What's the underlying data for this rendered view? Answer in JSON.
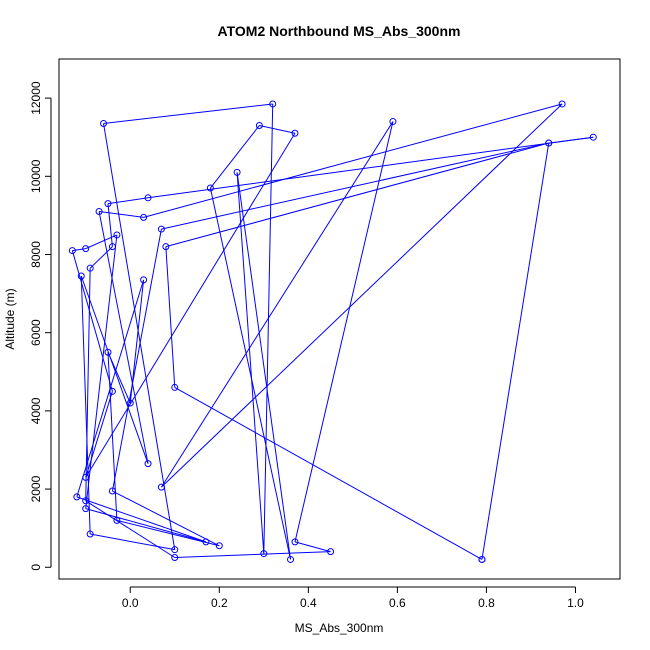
{
  "chart_data": {
    "type": "line",
    "title": "ATOM2 Northbound MS_Abs_300nm",
    "xlabel": "MS_Abs_300nm",
    "ylabel": "Altitude (m)",
    "xlim": [
      -0.16,
      1.1
    ],
    "ylim": [
      -300,
      13000
    ],
    "xticks": [
      0.0,
      0.2,
      0.4,
      0.6,
      0.8,
      1.0
    ],
    "xtick_labels": [
      "0.0",
      "0.2",
      "0.4",
      "0.6",
      "0.8",
      "1.0"
    ],
    "yticks": [
      0,
      2000,
      4000,
      6000,
      8000,
      10000,
      12000
    ],
    "ytick_labels": [
      "0",
      "2000",
      "4000",
      "6000",
      "8000",
      "10000",
      "12000"
    ],
    "grid": false,
    "legend": "none",
    "markers": "open-circle",
    "series": [
      {
        "color": "#0000ff",
        "points": [
          [
            0.79,
            200
          ],
          [
            0.94,
            10850
          ],
          [
            1.04,
            11000
          ],
          [
            0.04,
            9450
          ],
          [
            -0.05,
            9300
          ],
          [
            -0.04,
            8200
          ],
          [
            -0.09,
            7650
          ],
          [
            -0.1,
            1700
          ],
          [
            0.1,
            250
          ],
          [
            0.45,
            400
          ],
          [
            0.37,
            650
          ],
          [
            0.59,
            11400
          ],
          [
            0.07,
            2050
          ],
          [
            0.97,
            11850
          ],
          [
            0.03,
            8950
          ],
          [
            -0.07,
            9100
          ],
          [
            0.04,
            2650
          ],
          [
            -0.11,
            7450
          ],
          [
            -0.09,
            850
          ],
          [
            0.1,
            450
          ],
          [
            -0.06,
            11350
          ],
          [
            0.32,
            11850
          ],
          [
            0.3,
            350
          ],
          [
            0.24,
            10100
          ],
          [
            0.36,
            200
          ],
          [
            0.18,
            9700
          ],
          [
            0.29,
            11300
          ],
          [
            0.37,
            11100
          ],
          [
            -0.1,
            2300
          ],
          [
            -0.04,
            4500
          ],
          [
            -0.13,
            8100
          ],
          [
            -0.1,
            8150
          ],
          [
            -0.03,
            8500
          ],
          [
            -0.1,
            1500
          ],
          [
            0.17,
            650
          ],
          [
            -0.12,
            1800
          ],
          [
            0.03,
            7350
          ],
          [
            0.0,
            4200
          ],
          [
            -0.05,
            5500
          ],
          [
            -0.03,
            1200
          ],
          [
            0.2,
            550
          ],
          [
            -0.04,
            1950
          ],
          [
            0.07,
            8650
          ],
          [
            0.94,
            10850
          ],
          [
            0.08,
            8200
          ],
          [
            0.1,
            4600
          ],
          [
            0.79,
            200
          ]
        ]
      }
    ]
  }
}
